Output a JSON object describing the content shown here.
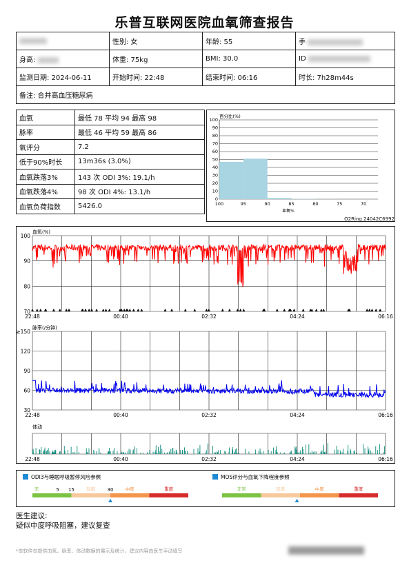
{
  "title": "乐普互联网医院血氧筛查报告",
  "info": {
    "gender": "性别: 女",
    "age": "年龄: 55",
    "phone_label": "手",
    "height_label": "身高:",
    "weight": "体重: 75kg",
    "bmi": "BMI: 30.0",
    "id_label": "ID",
    "date": "监测日期: 2024-06-11",
    "start": "开始时间: 22:48",
    "end": "结束时间: 06:16",
    "duration": "时长: 7h28m44s",
    "note": "备注: 合并高血压糖尿病"
  },
  "stats": [
    {
      "label": "血氧",
      "value": "最低 78 平均 94 最高 98"
    },
    {
      "label": "脉率",
      "value": "最低 46 平均 59 最高 86"
    },
    {
      "label": "氧评分",
      "value": "7.2"
    },
    {
      "label": "低于90%时长",
      "value": "13m36s (3.0%)"
    },
    {
      "label": "血氧跌落3%",
      "value": "143 次 ODI 3%: 19.1/h"
    },
    {
      "label": "血氧跌落4%",
      "value": "98 次 ODI 4%: 13.1/h"
    },
    {
      "label": "血氧负荷指数",
      "value": "5426.0"
    }
  ],
  "histogram": {
    "ylabel": "百分比(%)",
    "xlabel": "血氧%",
    "y_ticks": [
      "100",
      "90",
      "80",
      "70",
      "60",
      "50",
      "40",
      "30",
      "20",
      "10",
      "0"
    ],
    "x_ticks": [
      "100",
      "95",
      "90",
      "85",
      "80",
      "75",
      "70"
    ],
    "color": "#a9d4e2"
  },
  "device_id": "O2Ring 24042C6992",
  "charts": {
    "time_ticks": [
      "22:48",
      "00:40",
      "02:32",
      "04:24",
      "06:16"
    ],
    "spo2_label": "血氧(%)",
    "spo2_ticks": [
      "100",
      "90",
      "80",
      "70"
    ],
    "spo2_color": "#ff0000",
    "pr_label": "脉率(/分钟)",
    "pr_ticks": [
      "≥150",
      "120",
      "90",
      "60",
      "30"
    ],
    "pr_color": "#0000ee",
    "motion_label": "体动",
    "motion_color": "#0b8a7a"
  },
  "chart_data": [
    {
      "type": "bar",
      "categories": [
        "100-95",
        "95-90",
        "90-85",
        "85-80",
        "80-75",
        "75-70"
      ],
      "values": [
        47,
        51,
        1.5,
        0.4,
        0.1,
        0
      ],
      "xlabel": "血氧%",
      "ylabel": "百分比(%)",
      "ylim": [
        0,
        100
      ]
    },
    {
      "type": "line",
      "ylabel": "血氧(%)",
      "x": [
        "22:48",
        "00:40",
        "02:32",
        "04:24",
        "06:16"
      ],
      "ylim": [
        70,
        100
      ],
      "series": [
        {
          "values": [
            95,
            95,
            94,
            94,
            95
          ]
        }
      ]
    },
    {
      "type": "line",
      "ylabel": "脉率(/分钟)",
      "x": [
        "22:48",
        "00:40",
        "02:32",
        "04:24",
        "06:16"
      ],
      "ylim": [
        30,
        150
      ],
      "series": [
        {
          "values": [
            62,
            59,
            58,
            57,
            60
          ]
        }
      ]
    }
  ],
  "legend_odi": {
    "title": "ODI3与睡眠呼吸暂停风险参照",
    "segments": [
      "无",
      "轻度",
      "中度",
      "重度"
    ],
    "thresholds": [
      "5",
      "15",
      "30"
    ],
    "colors": [
      "#7cc243",
      "#f8c99d",
      "#f3954a",
      "#d62c2c"
    ],
    "marker_fraction": 0.5
  },
  "legend_mos": {
    "title": "MOS评分与血氧下降程度参照",
    "segments": [
      "正常",
      "轻度",
      "中度",
      "重度"
    ],
    "colors": [
      "#7cc243",
      "#f8c99d",
      "#f3954a",
      "#d62c2c"
    ],
    "marker_fraction": 0.48
  },
  "advice": {
    "heading": "医生建议:",
    "text": "疑似中度呼吸阻塞，建议复查"
  },
  "footnote": "*本软件仅提供血氧、脉率、体动数据的展示及统计，建议内容由医生手动填写",
  "marker_color": "#1f8ad6"
}
